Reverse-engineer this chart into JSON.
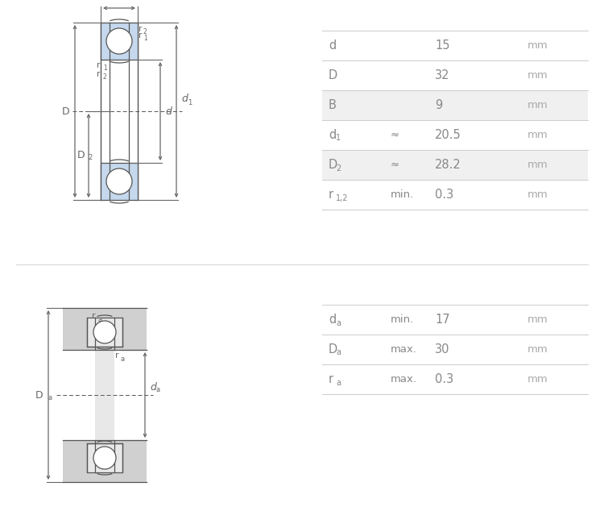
{
  "bg_color": "#ffffff",
  "table1": {
    "rows": [
      {
        "label": "d",
        "sub": "",
        "modifier": "",
        "value": "15",
        "unit": "mm",
        "shaded": false
      },
      {
        "label": "D",
        "sub": "",
        "modifier": "",
        "value": "32",
        "unit": "mm",
        "shaded": false
      },
      {
        "label": "B",
        "sub": "",
        "modifier": "",
        "value": "9",
        "unit": "mm",
        "shaded": true
      },
      {
        "label": "d",
        "sub": "1",
        "modifier": "≈",
        "value": "20.5",
        "unit": "mm",
        "shaded": false
      },
      {
        "label": "D",
        "sub": "2",
        "modifier": "≈",
        "value": "28.2",
        "unit": "mm",
        "shaded": true
      },
      {
        "label": "r",
        "sub": "1,2",
        "modifier": "min.",
        "value": "0.3",
        "unit": "mm",
        "shaded": false
      }
    ]
  },
  "table2": {
    "rows": [
      {
        "label": "d",
        "sub": "a",
        "modifier": "min.",
        "value": "17",
        "unit": "mm",
        "shaded": false
      },
      {
        "label": "D",
        "sub": "a",
        "modifier": "max.",
        "value": "30",
        "unit": "mm",
        "shaded": false
      },
      {
        "label": "r",
        "sub": "a",
        "modifier": "max.",
        "value": "0.3",
        "unit": "mm",
        "shaded": false
      }
    ]
  },
  "fill_color": "#c5d8ed",
  "dark_line": "#555555",
  "ann_color": "#666666",
  "label_color": "#888888",
  "unit_color": "#aaaaaa",
  "shade_color": "#f0f0f0",
  "gray_housing": "#d0d0d0",
  "gray_shaft": "#e8e8e8",
  "gray_race": "#e8e8e8",
  "divider_color": "#dddddd"
}
